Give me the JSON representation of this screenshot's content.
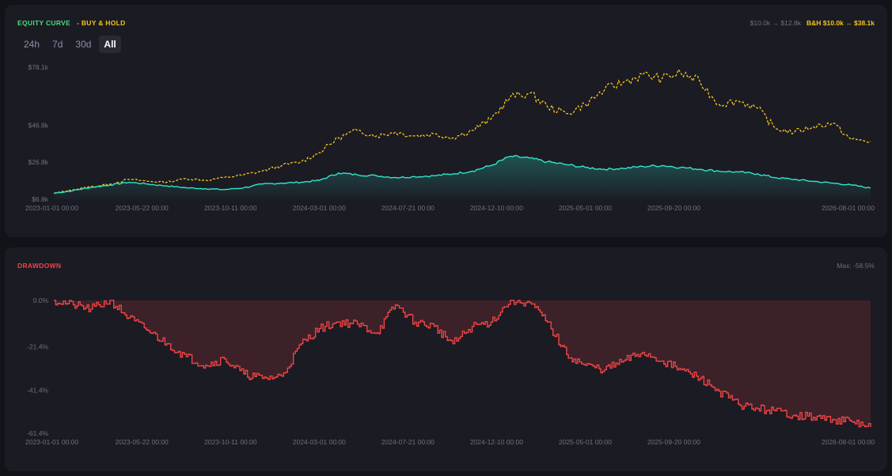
{
  "equity": {
    "title_strategy": "EQUITY CURVE",
    "title_bh": "- BUY & HOLD",
    "summary_strategy": "$10.0k → $12.8k",
    "summary_bh": "B&H $10.0k → $38.1k",
    "tabs": [
      {
        "label": "24h",
        "active": false
      },
      {
        "label": "7d",
        "active": false
      },
      {
        "label": "30d",
        "active": false
      },
      {
        "label": "All",
        "active": true
      }
    ]
  },
  "drawdown": {
    "title": "DRAWDOWN",
    "max_label": "Max: -58.5%"
  },
  "colors": {
    "strategy": "#2ee6c8",
    "strategy_start": "#a3e635",
    "buy_hold": "#f5c518",
    "drawdown": "#ef4444",
    "title_green": "#4ade80",
    "title_yellow": "#f5c518",
    "title_red": "#ef4444"
  },
  "chart_data": [
    {
      "type": "line",
      "x_ticks": [
        "2023-01-01 00:00",
        "2023-05-22 00:00",
        "2023-10-11 00:00",
        "2024-03-01 00:00",
        "2024-07-21 00:00",
        "2024-12-10 00:00",
        "2025-05-01 00:00",
        "2025-09-20 00:00",
        "2026-08-01 00:00"
      ],
      "y_ticks": [
        "$6.8k",
        "$26.8k",
        "$46.8k",
        "$78.1k"
      ],
      "series": [
        {
          "name": "EQUITY CURVE",
          "x": [
            "2023-01-01",
            "2023-02-01",
            "2023-03-01",
            "2023-04-01",
            "2023-05-01",
            "2023-06-01",
            "2023-07-01",
            "2023-08-01",
            "2023-09-01",
            "2023-10-01",
            "2023-11-01",
            "2023-12-01",
            "2024-01-01",
            "2024-02-01",
            "2024-03-01",
            "2024-04-01",
            "2024-05-01",
            "2024-06-01",
            "2024-07-01",
            "2024-08-01",
            "2024-09-01",
            "2024-10-01",
            "2024-11-01",
            "2024-12-01",
            "2025-01-01",
            "2025-02-01",
            "2025-03-01",
            "2025-04-01",
            "2025-05-01",
            "2025-06-01",
            "2025-07-01",
            "2025-08-01",
            "2025-09-01",
            "2025-10-01",
            "2025-11-01",
            "2025-12-01",
            "2026-01-01",
            "2026-02-01",
            "2026-03-01",
            "2026-04-01",
            "2026-05-01",
            "2026-06-01",
            "2026-07-01",
            "2026-08-01"
          ],
          "values": [
            10.0,
            11.5,
            13.2,
            14.5,
            16.0,
            15.0,
            14.0,
            13.0,
            12.5,
            12.0,
            13.0,
            15.0,
            15.5,
            16.0,
            17.0,
            21.0,
            20.0,
            19.5,
            18.5,
            19.0,
            19.5,
            20.5,
            22.0,
            25.0,
            30.0,
            29.0,
            27.0,
            25.5,
            24.0,
            23.0,
            23.5,
            24.5,
            25.0,
            24.0,
            23.0,
            22.0,
            21.5,
            20.5,
            18.5,
            17.5,
            16.5,
            15.5,
            14.5,
            12.8
          ]
        },
        {
          "name": "BUY & HOLD",
          "x": [
            "2023-01-01",
            "2023-02-01",
            "2023-03-01",
            "2023-04-01",
            "2023-05-01",
            "2023-06-01",
            "2023-07-01",
            "2023-08-01",
            "2023-09-01",
            "2023-10-01",
            "2023-11-01",
            "2023-12-01",
            "2024-01-01",
            "2024-02-01",
            "2024-03-01",
            "2024-04-01",
            "2024-05-01",
            "2024-06-01",
            "2024-07-01",
            "2024-08-01",
            "2024-09-01",
            "2024-10-01",
            "2024-11-01",
            "2024-12-01",
            "2025-01-01",
            "2025-02-01",
            "2025-03-01",
            "2025-04-01",
            "2025-05-01",
            "2025-06-01",
            "2025-07-01",
            "2025-08-01",
            "2025-09-01",
            "2025-10-01",
            "2025-11-01",
            "2025-12-01",
            "2026-01-01",
            "2026-02-01",
            "2026-03-01",
            "2026-04-01",
            "2026-05-01",
            "2026-06-01",
            "2026-07-01",
            "2026-08-01"
          ],
          "values": [
            10.0,
            12.0,
            13.5,
            15.0,
            17.5,
            16.5,
            16.0,
            18.0,
            17.0,
            18.5,
            20.0,
            22.0,
            25.0,
            27.0,
            32.0,
            40.0,
            44.0,
            41.0,
            43.0,
            41.0,
            42.0,
            40.0,
            44.0,
            50.0,
            62.0,
            64.0,
            57.0,
            53.0,
            58.0,
            66.0,
            70.0,
            74.0,
            72.0,
            75.0,
            70.0,
            58.0,
            60.0,
            56.0,
            45.0,
            43.0,
            46.0,
            48.0,
            39.0,
            38.1
          ]
        }
      ]
    },
    {
      "type": "area",
      "x_ticks": [
        "2023-01-01 00:00",
        "2023-05-22 00:00",
        "2023-10-11 00:00",
        "2024-03-01 00:00",
        "2024-07-21 00:00",
        "2024-12-10 00:00",
        "2025-05-01 00:00",
        "2025-09-20 00:00",
        "2026-08-01 00:00"
      ],
      "y_ticks": [
        "0.0%",
        "-21.4%",
        "-41.4%",
        "-61.4%"
      ],
      "x": [
        "2023-01-01",
        "2023-02-01",
        "2023-03-01",
        "2023-04-01",
        "2023-05-01",
        "2023-06-01",
        "2023-07-01",
        "2023-08-01",
        "2023-09-01",
        "2023-10-01",
        "2023-11-01",
        "2023-12-01",
        "2024-01-01",
        "2024-02-01",
        "2024-03-01",
        "2024-04-01",
        "2024-05-01",
        "2024-06-01",
        "2024-07-01",
        "2024-08-01",
        "2024-09-01",
        "2024-10-01",
        "2024-11-01",
        "2024-12-01",
        "2025-01-01",
        "2025-02-01",
        "2025-03-01",
        "2025-04-01",
        "2025-05-01",
        "2025-06-01",
        "2025-07-01",
        "2025-08-01",
        "2025-09-01",
        "2025-10-01",
        "2025-11-01",
        "2025-12-01",
        "2026-01-01",
        "2026-02-01",
        "2026-03-01",
        "2026-04-01",
        "2026-05-01",
        "2026-06-01",
        "2026-07-01",
        "2026-08-01"
      ],
      "values": [
        0,
        -2,
        -4,
        0,
        -8,
        -14,
        -20,
        -26,
        -30,
        -27,
        -34,
        -36,
        -35,
        -20,
        -13,
        -10,
        -11,
        -15,
        -2,
        -10,
        -12,
        -20,
        -12,
        -10,
        0,
        -1,
        -10,
        -25,
        -30,
        -32,
        -28,
        -24,
        -28,
        -32,
        -36,
        -42,
        -48,
        -50,
        -51,
        -53,
        -54,
        -55,
        -56,
        -58.5
      ],
      "ylim": [
        -61.4,
        0
      ]
    }
  ]
}
